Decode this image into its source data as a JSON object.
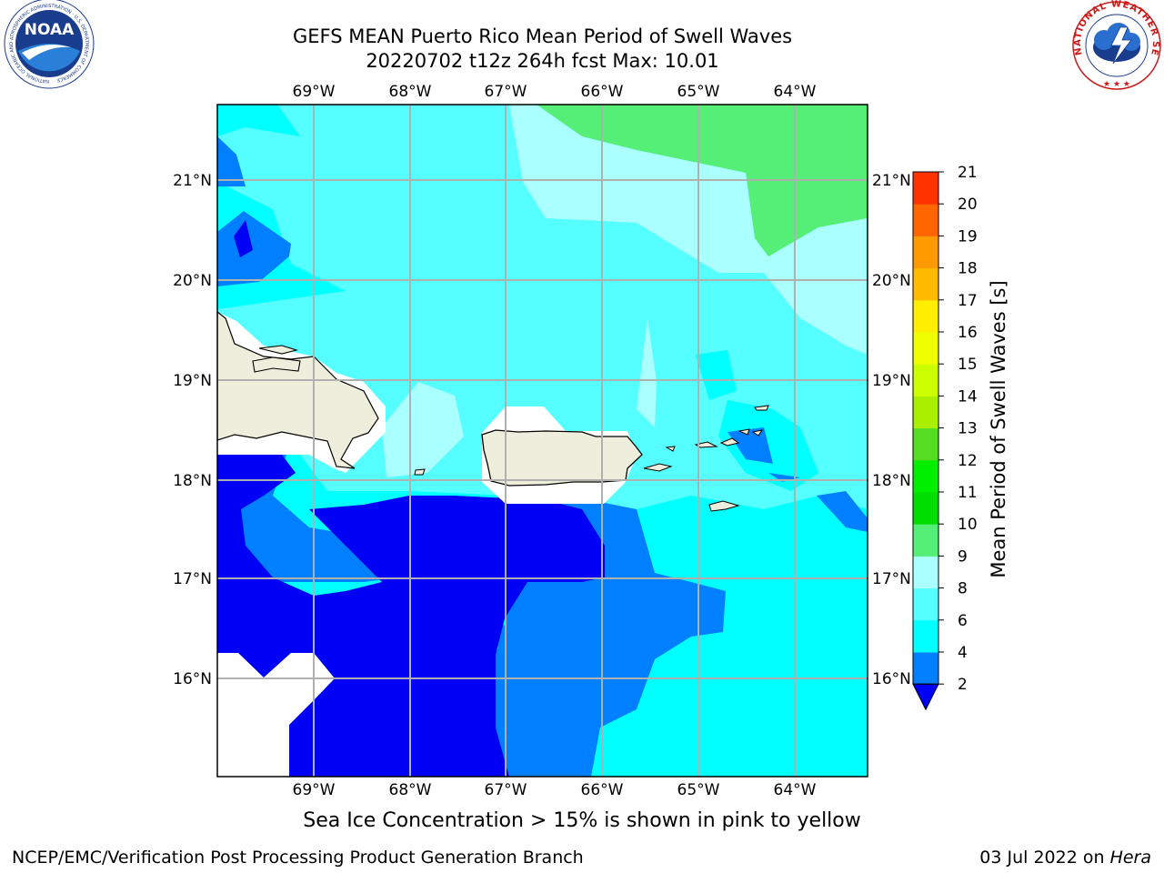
{
  "title": {
    "line1": "GEFS MEAN Puerto Rico Mean Period of Swell Waves",
    "line2": "20220702 t12z 264h fcst   Max: 10.01"
  },
  "map": {
    "lon_labels": [
      "69°W",
      "68°W",
      "67°W",
      "66°W",
      "65°W",
      "64°W"
    ],
    "lat_labels": [
      "21°N",
      "20°N",
      "19°N",
      "18°N",
      "17°N",
      "16°N"
    ],
    "colors": {
      "land": "#eeeedd",
      "no_data": "#ffffff",
      "grid": "#b0b0b0"
    }
  },
  "colorbar": {
    "title": "Mean Period of Swell Waves [s]",
    "ticks": [
      "2",
      "4",
      "6",
      "8",
      "9",
      "10",
      "11",
      "12",
      "13",
      "14",
      "15",
      "16",
      "17",
      "18",
      "19",
      "20",
      "21"
    ],
    "colors": [
      "#0000f5",
      "#0080ff",
      "#00ffff",
      "#55ffff",
      "#aaffff",
      "#55ee77",
      "#00dd00",
      "#00ee00",
      "#55dd22",
      "#aaee00",
      "#ccff00",
      "#eeff00",
      "#ffee00",
      "#ffbb00",
      "#ff9900",
      "#ff6600",
      "#ff3300",
      "#ff0000"
    ]
  },
  "note": "Sea Ice Concentration > 15% is shown in pink to yellow",
  "footer": {
    "left": "NCEP/EMC/Verification Post Processing Product Generation Branch",
    "date": "03 Jul 2022 on ",
    "host": "Hera"
  },
  "logos": {
    "noaa": "NOAA",
    "noaa_ring": "NATIONAL OCEANIC AND ATMOSPHERIC ADMINISTRATION · U.S. DEPARTMENT OF COMMERCE",
    "nws_ring": "NATIONAL WEATHER SERVICE"
  }
}
